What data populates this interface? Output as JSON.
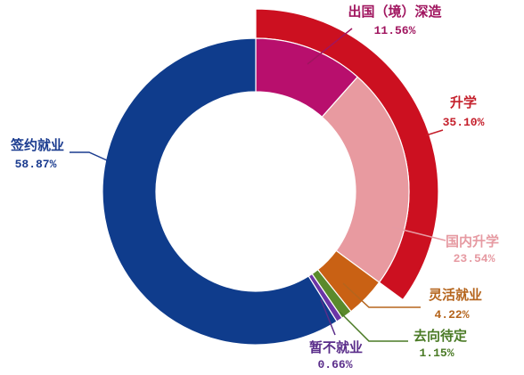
{
  "chart_data": {
    "type": "pie",
    "slices": [
      {
        "key": "overseas",
        "label": "出国（境）深造",
        "pct_text": "11.56%",
        "value": 11.56,
        "color": "#b80f6d",
        "label_color": "#a0155f"
      },
      {
        "key": "domestic",
        "label": "国内升学",
        "pct_text": "23.54%",
        "value": 23.54,
        "color": "#e89aa0",
        "label_color": "#e69aa2"
      },
      {
        "key": "flexible",
        "label": "灵活就业",
        "pct_text": "4.22%",
        "value": 4.22,
        "color": "#c96114",
        "label_color": "#b5651d"
      },
      {
        "key": "pending",
        "label": "去向待定",
        "pct_text": "1.15%",
        "value": 1.15,
        "color": "#5a8a2c",
        "label_color": "#4a7a25"
      },
      {
        "key": "notemployed",
        "label": "暂不就业",
        "pct_text": "0.66%",
        "value": 0.66,
        "color": "#6b35a6",
        "label_color": "#5a2d8a"
      },
      {
        "key": "signed",
        "label": "签约就业",
        "pct_text": "58.87%",
        "value": 58.87,
        "color": "#0f3c8c",
        "label_color": "#1a3b8f"
      }
    ],
    "outer_arc": {
      "label": "升学",
      "pct_text": "35.10%",
      "value": 35.1,
      "color": "#cc1020",
      "label_color": "#c41e2a"
    }
  }
}
